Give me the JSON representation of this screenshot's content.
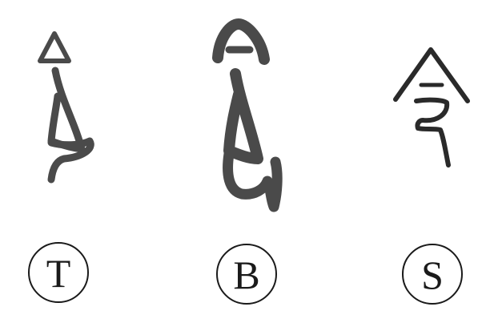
{
  "labels": {
    "t": "T",
    "b": "B",
    "s": "S"
  },
  "glyphs": {
    "t": {
      "icon": "seal-script-glyph-t",
      "color": "#4a4a4a"
    },
    "b": {
      "icon": "seal-script-glyph-b",
      "color": "#4a4a4a"
    },
    "s": {
      "icon": "seal-script-glyph-s",
      "color": "#2a2a2a"
    }
  }
}
